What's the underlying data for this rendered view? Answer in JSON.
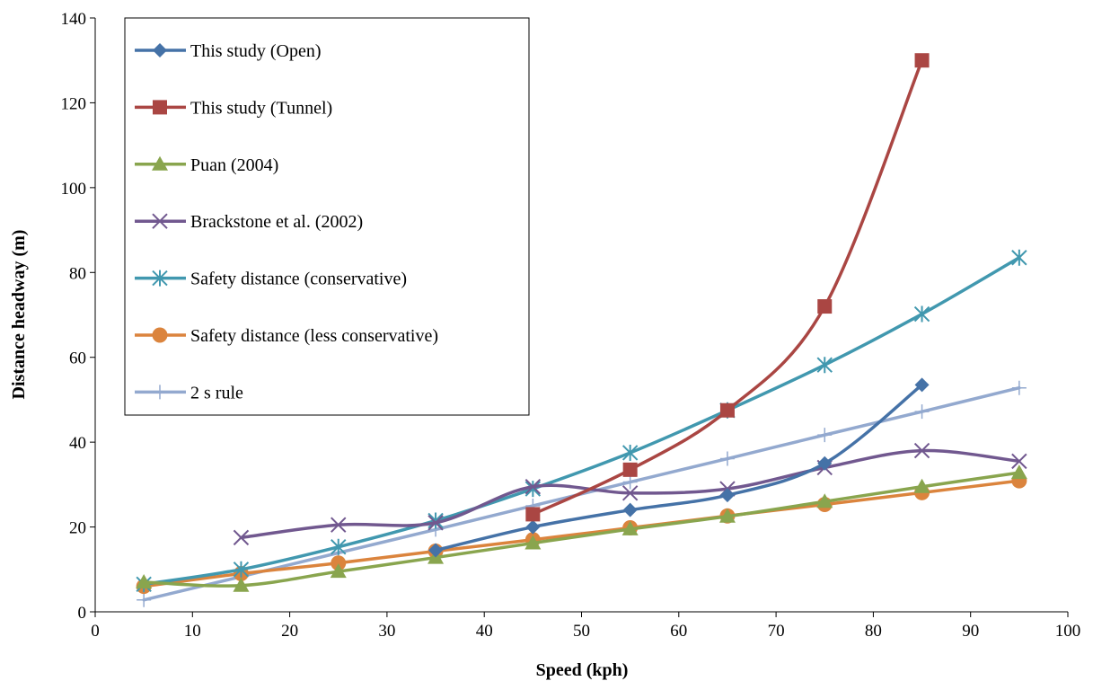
{
  "chart_data": {
    "type": "line",
    "xlabel": "Speed (kph)",
    "ylabel": "Distance headway (m)",
    "xlim": [
      0,
      100
    ],
    "ylim": [
      0,
      140
    ],
    "xticks": [
      0,
      10,
      20,
      30,
      40,
      50,
      60,
      70,
      80,
      90,
      100
    ],
    "yticks": [
      0,
      20,
      40,
      60,
      80,
      100,
      120,
      140
    ],
    "grid": false,
    "legend_position": "top-left",
    "series": [
      {
        "name": "This study (Open)",
        "color": "#4572a7",
        "marker": "diamond",
        "x": [
          35,
          45,
          55,
          65,
          75,
          85
        ],
        "y": [
          14.5,
          20,
          24,
          27.5,
          35,
          53.5
        ]
      },
      {
        "name": "This study (Tunnel)",
        "color": "#aa4643",
        "marker": "square",
        "x": [
          45,
          55,
          65,
          75,
          85
        ],
        "y": [
          23,
          33.5,
          47.5,
          72,
          130
        ]
      },
      {
        "name": "Puan (2004)",
        "color": "#89a54e",
        "marker": "triangle",
        "x": [
          5,
          15,
          25,
          35,
          45,
          55,
          65,
          75,
          85,
          95
        ],
        "y": [
          7,
          6.2,
          9.5,
          12.8,
          16.2,
          19.5,
          22.5,
          26,
          29.5,
          32.8
        ]
      },
      {
        "name": "Brackstone et al. (2002)",
        "color": "#71588f",
        "marker": "x",
        "x": [
          15,
          25,
          35,
          45,
          55,
          65,
          75,
          85,
          95
        ],
        "y": [
          17.5,
          20.5,
          21,
          29.5,
          28,
          29,
          34,
          38,
          35.5
        ]
      },
      {
        "name": "Safety distance (conservative)",
        "color": "#4198af",
        "marker": "asterisk",
        "x": [
          5,
          15,
          25,
          35,
          45,
          55,
          65,
          75,
          85,
          95
        ],
        "y": [
          6.5,
          10,
          15.3,
          21.5,
          29,
          37.5,
          47.5,
          58.2,
          70.2,
          83.5
        ]
      },
      {
        "name": "Safety distance (less conservative)",
        "color": "#db843d",
        "marker": "circle",
        "x": [
          5,
          15,
          25,
          35,
          45,
          55,
          65,
          75,
          85,
          95
        ],
        "y": [
          6,
          9,
          11.5,
          14.3,
          17,
          19.8,
          22.6,
          25.3,
          28.1,
          30.9
        ]
      },
      {
        "name": "2 s rule",
        "color": "#93a9cf",
        "marker": "plus",
        "x": [
          5,
          15,
          25,
          35,
          45,
          55,
          65,
          75,
          85,
          95
        ],
        "y": [
          2.8,
          8.3,
          13.9,
          19.4,
          25,
          30.6,
          36.1,
          41.7,
          47.2,
          52.8
        ]
      }
    ]
  }
}
